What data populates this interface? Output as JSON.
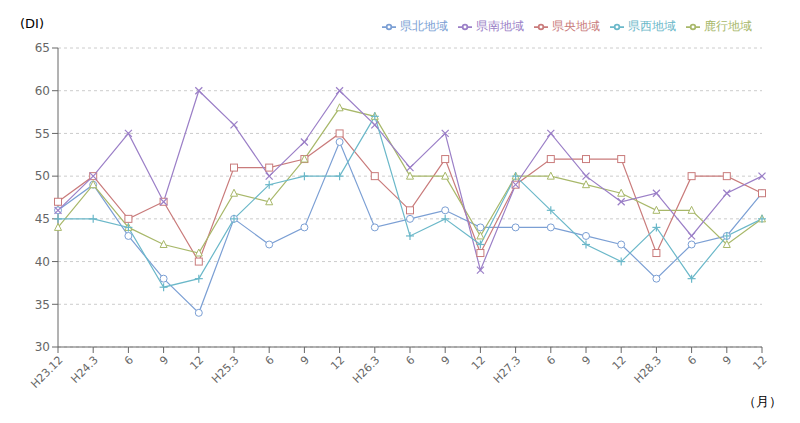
{
  "chart_data": {
    "type": "line",
    "categories": [
      "H23.12",
      "H24.3",
      "6",
      "9",
      "12",
      "H25.3",
      "6",
      "9",
      "12",
      "H26.3",
      "6",
      "9",
      "12",
      "H27.3",
      "6",
      "9",
      "12",
      "H28.3",
      "6",
      "9",
      "12"
    ],
    "series": [
      {
        "name": "県北地域",
        "color": "#7B9FD4",
        "marker": "circle",
        "values": [
          46,
          49,
          43,
          38,
          34,
          45,
          42,
          44,
          54,
          44,
          45,
          46,
          44,
          44,
          44,
          43,
          42,
          38,
          42,
          43,
          48
        ]
      },
      {
        "name": "県央地域",
        "color": "#C97B7B",
        "marker": "square",
        "values": [
          47,
          50,
          45,
          47,
          40,
          51,
          51,
          52,
          55,
          50,
          46,
          52,
          41,
          49,
          52,
          52,
          52,
          41,
          50,
          50,
          48
        ]
      },
      {
        "name": "鹿行地域",
        "color": "#A8B86A",
        "marker": "triangle",
        "values": [
          44,
          49,
          44,
          42,
          41,
          48,
          47,
          52,
          58,
          57,
          50,
          50,
          43,
          50,
          50,
          49,
          48,
          46,
          46,
          42,
          45
        ]
      },
      {
        "name": "県南地域",
        "color": "#9B7FC7",
        "marker": "x",
        "values": [
          46,
          50,
          55,
          47,
          60,
          56,
          50,
          54,
          60,
          56,
          51,
          55,
          39,
          49,
          55,
          50,
          47,
          48,
          43,
          48,
          50
        ]
      },
      {
        "name": "県西地域",
        "color": "#6BB8C9",
        "marker": "plus",
        "values": [
          45,
          45,
          44,
          37,
          38,
          45,
          49,
          50,
          50,
          57,
          43,
          45,
          42,
          50,
          46,
          42,
          40,
          44,
          38,
          43,
          45
        ]
      }
    ],
    "ylabel": "(DI)",
    "xlabel": "（月）",
    "ylim": [
      30,
      65
    ],
    "yticks": [
      30,
      35,
      40,
      45,
      50,
      55,
      60,
      65
    ],
    "grid": true,
    "legend": "upper right"
  }
}
